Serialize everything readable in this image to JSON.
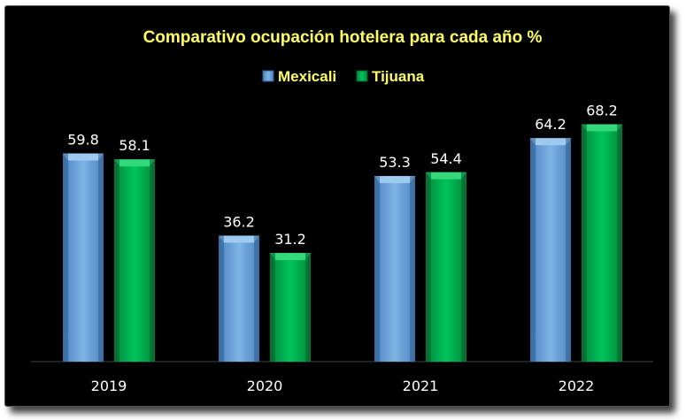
{
  "chart_data": {
    "type": "bar",
    "title": "Comparativo ocupación hotelera para cada año %",
    "categories": [
      "2019",
      "2020",
      "2021",
      "2022"
    ],
    "series": [
      {
        "name": "Mexicali",
        "values": [
          59.8,
          36.2,
          53.3,
          64.2
        ],
        "color": "#5b9bd5"
      },
      {
        "name": "Tijuana",
        "values": [
          58.1,
          31.2,
          54.4,
          68.2
        ],
        "color": "#00b050"
      }
    ],
    "ylim": [
      0,
      80
    ],
    "grid": false,
    "legend_position": "top",
    "background": "#000000",
    "title_color": "#ffff66",
    "label_color": "#ffffff"
  }
}
